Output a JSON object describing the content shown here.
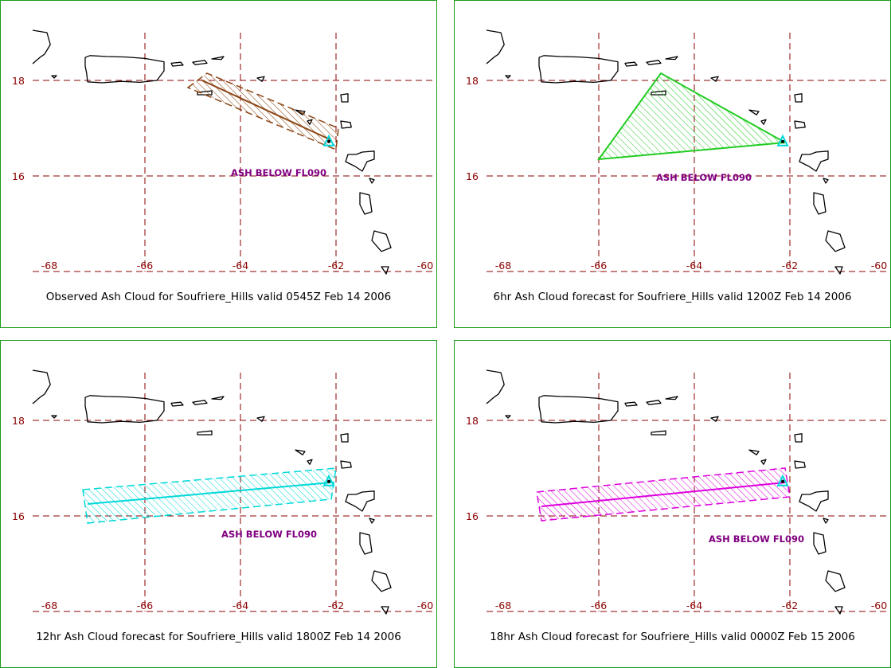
{
  "colors": {
    "border": "#1a9c1a",
    "grid": "#8b0000",
    "axis_label": "#8b0000",
    "coast": "#000000",
    "ash_text": "#800080",
    "caption": "#000000"
  },
  "map": {
    "lon_ticks": [
      "-68",
      "-66",
      "-64",
      "-62",
      "-60"
    ],
    "lat_ticks": [
      "18",
      "16"
    ],
    "lon_range": [
      -68.3,
      -60.0
    ],
    "lat_range": [
      14.0,
      19.0
    ]
  },
  "volcano_icon": "triangle-icon",
  "panels": [
    {
      "id": "observed",
      "caption": "Observed Ash Cloud for Soufriere_Hills valid 0545Z Feb 14 2006",
      "label": "ASH BELOW FL090",
      "label_pos": [
        -64.2,
        16.0
      ],
      "shape": "band",
      "color": "#8b4513",
      "axis_line": [
        [
          -64.8,
          18.0
        ],
        [
          -62.1,
          16.75
        ]
      ],
      "band_polygon": [
        [
          -65.1,
          17.85
        ],
        [
          -64.7,
          18.15
        ],
        [
          -61.95,
          17.0
        ],
        [
          -62.0,
          16.55
        ]
      ]
    },
    {
      "id": "6hr",
      "caption": "6hr Ash Cloud forecast for Soufriere_Hills valid 1200Z Feb 14 2006",
      "label": "ASH BELOW FL090",
      "label_pos": [
        -64.8,
        15.9
      ],
      "shape": "triangle",
      "color": "#22cc22",
      "polygon": [
        [
          -66.0,
          16.35
        ],
        [
          -64.7,
          18.15
        ],
        [
          -62.1,
          16.7
        ]
      ]
    },
    {
      "id": "12hr",
      "caption": "12hr Ash Cloud forecast for Soufriere_Hills valid 1800Z Feb 14 2006",
      "label": "ASH BELOW FL090",
      "label_pos": [
        -64.4,
        15.55
      ],
      "shape": "band",
      "color": "#00d8d8",
      "axis_line": [
        [
          -67.2,
          16.25
        ],
        [
          -62.1,
          16.7
        ]
      ],
      "band_polygon": [
        [
          -67.3,
          16.55
        ],
        [
          -62.0,
          17.0
        ],
        [
          -62.1,
          16.35
        ],
        [
          -67.2,
          15.85
        ]
      ]
    },
    {
      "id": "18hr",
      "caption": "18hr Ash Cloud forecast for Soufriere_Hills valid 0000Z Feb 15 2006",
      "label": "ASH BELOW FL090",
      "label_pos": [
        -63.7,
        15.45
      ],
      "shape": "band",
      "color": "#dd00dd",
      "axis_line": [
        [
          -67.2,
          16.2
        ],
        [
          -62.1,
          16.7
        ]
      ],
      "band_polygon": [
        [
          -67.3,
          16.5
        ],
        [
          -62.1,
          17.0
        ],
        [
          -62.0,
          16.4
        ],
        [
          -67.2,
          15.9
        ]
      ]
    }
  ]
}
